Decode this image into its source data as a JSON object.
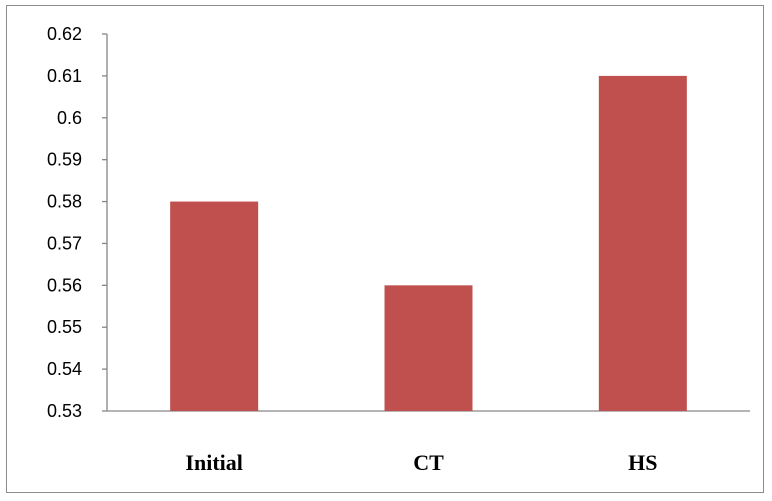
{
  "chart_data": {
    "type": "bar",
    "categories": [
      "Initial",
      "CT",
      "HS"
    ],
    "values": [
      0.58,
      0.56,
      0.61
    ],
    "ylim": [
      0.53,
      0.62
    ],
    "yticks": [
      "0.53",
      "0.54",
      "0.55",
      "0.56",
      "0.57",
      "0.58",
      "0.59",
      "0.6",
      "0.61",
      "0.62"
    ],
    "title": "",
    "xlabel": "",
    "ylabel": "",
    "legend": "none",
    "grid": false,
    "bar_color": "#c0504d"
  }
}
